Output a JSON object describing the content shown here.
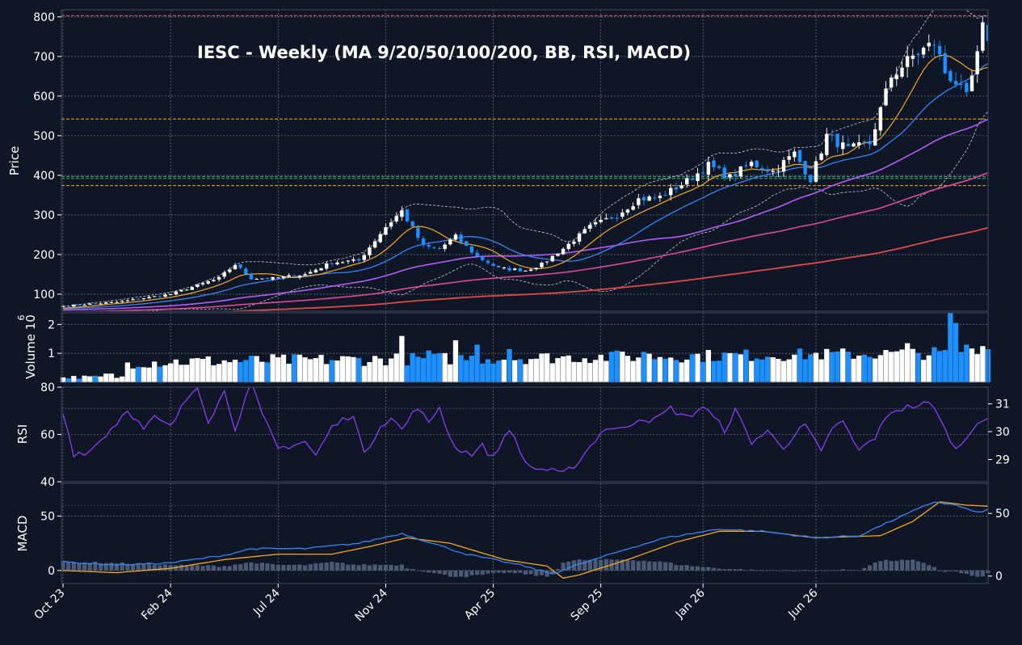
{
  "chart_data": {
    "type": "candlestick",
    "title": "IESC  -  Weekly  (MA 9/20/50/100/200, BB, RSI, MACD)",
    "colors": {
      "background": "#0f1726",
      "panel_border": "#3d4a5c",
      "grid": "#8a95a6",
      "text": "#ffffff",
      "up_candle": "#ffffff",
      "down_candle": "#1e8fff",
      "ma9": "#f5a623",
      "ma20": "#3b82f6",
      "ma50": "#b45cf5",
      "ma100": "#e0489a",
      "ma200": "#e0484a",
      "bollinger": "#c8cdd6",
      "level_red": "#e05a5a",
      "level_orange": "#f5a623",
      "level_green": "#3cb371",
      "rsi_line": "#8b3cf5",
      "macd_line": "#3b82f6",
      "signal_line": "#f5a623",
      "histogram": "#4a5a75"
    },
    "x_ticks": [
      "Oct 23",
      "Feb 24",
      "Jul 24",
      "Nov 24",
      "Apr 25",
      "Sep 25",
      "Jan 26",
      "Jun 26"
    ],
    "price_panel": {
      "ylabel": "Price",
      "ylim": [
        57,
        818
      ],
      "yticks": [
        100,
        200,
        300,
        400,
        500,
        600,
        700,
        800
      ],
      "horizontal_levels": [
        {
          "value": 803,
          "color": "red"
        },
        {
          "value": 542,
          "color": "orange"
        },
        {
          "value": 397,
          "color": "green"
        },
        {
          "value": 392,
          "color": "green"
        },
        {
          "value": 374,
          "color": "orange"
        }
      ],
      "close_anchors": [
        [
          0,
          70
        ],
        [
          10,
          80
        ],
        [
          20,
          100
        ],
        [
          29,
          140
        ],
        [
          32,
          175
        ],
        [
          35,
          140
        ],
        [
          39,
          140
        ],
        [
          45,
          150
        ],
        [
          50,
          180
        ],
        [
          55,
          185
        ],
        [
          60,
          270
        ],
        [
          63,
          310
        ],
        [
          67,
          220
        ],
        [
          70,
          215
        ],
        [
          73,
          245
        ],
        [
          77,
          195
        ],
        [
          81,
          165
        ],
        [
          86,
          160
        ],
        [
          89,
          175
        ],
        [
          93,
          215
        ],
        [
          98,
          270
        ],
        [
          103,
          300
        ],
        [
          107,
          340
        ],
        [
          111,
          345
        ],
        [
          116,
          385
        ],
        [
          120,
          425
        ],
        [
          124,
          395
        ],
        [
          128,
          430
        ],
        [
          132,
          410
        ],
        [
          136,
          455
        ],
        [
          139,
          390
        ],
        [
          142,
          500
        ],
        [
          146,
          465
        ],
        [
          150,
          480
        ],
        [
          154,
          650
        ],
        [
          158,
          700
        ],
        [
          162,
          735
        ],
        [
          164,
          660
        ],
        [
          166,
          635
        ],
        [
          168,
          595
        ],
        [
          170,
          700
        ],
        [
          171,
          770
        ],
        [
          172,
          750
        ]
      ],
      "n_candles": 173
    },
    "volume_panel": {
      "ylabel": "Volume  10^6",
      "unit_label": "Volume",
      "multiplier_label": "6",
      "ylim": [
        0,
        2.4
      ],
      "yticks": [
        1,
        2
      ],
      "spikes": [
        {
          "i": 63,
          "v": 1.6
        },
        {
          "i": 68,
          "v": 1.1
        },
        {
          "i": 73,
          "v": 1.45
        },
        {
          "i": 77,
          "v": 1.3
        },
        {
          "i": 83,
          "v": 1.15
        },
        {
          "i": 102,
          "v": 1.05
        },
        {
          "i": 108,
          "v": 1.05
        },
        {
          "i": 157,
          "v": 1.35
        },
        {
          "i": 165,
          "v": 2.4
        },
        {
          "i": 166,
          "v": 2.05
        },
        {
          "i": 167,
          "v": 1.05
        },
        {
          "i": 168,
          "v": 1.3
        },
        {
          "i": 171,
          "v": 1.25
        }
      ]
    },
    "rsi_panel": {
      "ylabel": "RSI",
      "ylim": [
        40,
        80
      ],
      "yticks": [
        40,
        60,
        80
      ],
      "right_ticks": [
        29,
        30,
        31
      ],
      "anchors": [
        [
          0,
          69
        ],
        [
          2,
          52
        ],
        [
          5,
          53
        ],
        [
          10,
          65
        ],
        [
          12,
          71
        ],
        [
          15,
          62
        ],
        [
          17,
          67
        ],
        [
          20,
          63
        ],
        [
          23,
          75
        ],
        [
          25,
          81
        ],
        [
          27,
          66
        ],
        [
          30,
          78
        ],
        [
          32,
          63
        ],
        [
          35,
          82
        ],
        [
          37,
          68
        ],
        [
          40,
          54
        ],
        [
          45,
          57
        ],
        [
          47,
          51
        ],
        [
          50,
          63
        ],
        [
          54,
          69
        ],
        [
          56,
          51
        ],
        [
          59,
          64
        ],
        [
          61,
          67
        ],
        [
          63,
          62
        ],
        [
          66,
          72
        ],
        [
          68,
          64
        ],
        [
          70,
          72
        ],
        [
          72,
          58
        ],
        [
          74,
          53
        ],
        [
          76,
          52
        ],
        [
          78,
          55
        ],
        [
          80,
          50
        ],
        [
          83,
          63
        ],
        [
          85,
          52
        ],
        [
          87,
          46
        ],
        [
          90,
          45
        ],
        [
          93,
          43
        ],
        [
          96,
          49
        ],
        [
          99,
          58
        ],
        [
          101,
          63
        ],
        [
          104,
          62
        ],
        [
          107,
          67
        ],
        [
          110,
          66
        ],
        [
          113,
          71
        ],
        [
          116,
          67
        ],
        [
          119,
          72
        ],
        [
          123,
          62
        ],
        [
          125,
          70
        ],
        [
          128,
          57
        ],
        [
          131,
          61
        ],
        [
          134,
          55
        ],
        [
          138,
          64
        ],
        [
          141,
          52
        ],
        [
          143,
          63
        ],
        [
          145,
          65
        ],
        [
          148,
          53
        ],
        [
          151,
          59
        ],
        [
          154,
          70
        ],
        [
          158,
          72
        ],
        [
          161,
          73
        ],
        [
          163,
          68
        ],
        [
          165,
          56
        ],
        [
          167,
          55
        ],
        [
          170,
          66
        ],
        [
          172,
          67
        ]
      ]
    },
    "macd_panel": {
      "ylabel": "MACD",
      "ylim": [
        -12,
        80
      ],
      "yticks": [
        0,
        50
      ],
      "right_ticks": [
        0,
        50
      ],
      "macd_anchors": [
        [
          0,
          8
        ],
        [
          10,
          5
        ],
        [
          20,
          7
        ],
        [
          30,
          14
        ],
        [
          35,
          20
        ],
        [
          45,
          20
        ],
        [
          55,
          25
        ],
        [
          63,
          34
        ],
        [
          75,
          15
        ],
        [
          85,
          5
        ],
        [
          91,
          -3
        ],
        [
          95,
          4
        ],
        [
          105,
          20
        ],
        [
          112,
          30
        ],
        [
          122,
          38
        ],
        [
          130,
          36
        ],
        [
          140,
          30
        ],
        [
          148,
          32
        ],
        [
          156,
          50
        ],
        [
          162,
          63
        ],
        [
          166,
          60
        ],
        [
          170,
          53
        ],
        [
          172,
          56
        ]
      ],
      "signal_anchors": [
        [
          0,
          0
        ],
        [
          10,
          -2
        ],
        [
          20,
          2
        ],
        [
          30,
          10
        ],
        [
          40,
          15
        ],
        [
          50,
          15
        ],
        [
          57,
          22
        ],
        [
          64,
          30
        ],
        [
          72,
          25
        ],
        [
          82,
          10
        ],
        [
          90,
          4
        ],
        [
          93,
          -7
        ],
        [
          96,
          -4
        ],
        [
          105,
          10
        ],
        [
          114,
          26
        ],
        [
          122,
          36
        ],
        [
          130,
          36
        ],
        [
          140,
          30
        ],
        [
          152,
          32
        ],
        [
          158,
          45
        ],
        [
          163,
          63
        ],
        [
          168,
          60
        ],
        [
          172,
          59
        ]
      ]
    }
  }
}
